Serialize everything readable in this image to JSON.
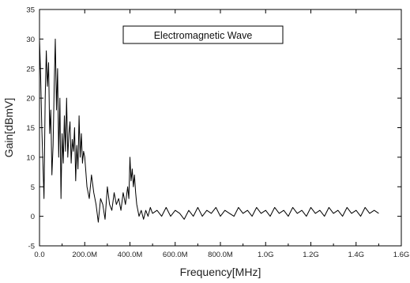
{
  "chart_data": {
    "type": "line",
    "title": "",
    "xlabel": "Frequency[MHz]",
    "ylabel": "Gain[dBmV]",
    "xlim": [
      0,
      1600
    ],
    "ylim": [
      -5,
      35
    ],
    "x_ticks": [
      {
        "value": 0,
        "label": "0.0"
      },
      {
        "value": 200,
        "label": "200.0M"
      },
      {
        "value": 400,
        "label": "400.0M"
      },
      {
        "value": 600,
        "label": "600.0M"
      },
      {
        "value": 800,
        "label": "800.0M"
      },
      {
        "value": 1000,
        "label": "1.0G"
      },
      {
        "value": 1200,
        "label": "1.2G"
      },
      {
        "value": 1400,
        "label": "1.4G"
      },
      {
        "value": 1600,
        "label": "1.6G"
      }
    ],
    "y_ticks": [
      {
        "value": -5,
        "label": "-5"
      },
      {
        "value": 0,
        "label": "0"
      },
      {
        "value": 5,
        "label": "5"
      },
      {
        "value": 10,
        "label": "10"
      },
      {
        "value": 15,
        "label": "15"
      },
      {
        "value": 20,
        "label": "20"
      },
      {
        "value": 25,
        "label": "25"
      },
      {
        "value": 30,
        "label": "30"
      },
      {
        "value": 35,
        "label": "35"
      }
    ],
    "grid": false,
    "legend_position": "top-center",
    "series": [
      {
        "name": "Electromagnetic Wave",
        "color": "#000000",
        "x": [
          0,
          5,
          10,
          15,
          20,
          25,
          30,
          35,
          40,
          45,
          50,
          55,
          60,
          65,
          70,
          75,
          80,
          85,
          90,
          95,
          100,
          105,
          110,
          115,
          120,
          125,
          130,
          135,
          140,
          145,
          150,
          155,
          160,
          165,
          170,
          175,
          180,
          185,
          190,
          195,
          200,
          210,
          220,
          230,
          240,
          250,
          260,
          270,
          280,
          290,
          300,
          310,
          320,
          330,
          340,
          350,
          360,
          370,
          380,
          390,
          395,
          400,
          405,
          410,
          415,
          420,
          425,
          430,
          440,
          450,
          460,
          470,
          480,
          490,
          500,
          520,
          540,
          560,
          580,
          600,
          620,
          640,
          660,
          680,
          700,
          720,
          740,
          760,
          780,
          800,
          820,
          840,
          860,
          880,
          900,
          920,
          940,
          960,
          980,
          1000,
          1020,
          1040,
          1060,
          1080,
          1100,
          1120,
          1140,
          1160,
          1180,
          1200,
          1220,
          1240,
          1260,
          1280,
          1300,
          1320,
          1340,
          1360,
          1380,
          1400,
          1420,
          1440,
          1460,
          1480,
          1500
        ],
        "y": [
          30,
          24,
          15,
          9,
          3,
          20,
          28,
          22,
          26,
          14,
          18,
          7,
          12,
          22,
          30,
          18,
          25,
          10,
          20,
          3,
          14,
          9,
          17,
          11,
          20,
          10,
          14,
          16,
          9,
          13,
          11,
          15,
          6,
          12,
          8,
          17,
          10,
          14,
          9,
          11,
          10,
          5,
          3,
          7,
          4,
          2,
          -1,
          3,
          2,
          -0.5,
          5,
          2,
          1,
          4,
          2,
          3,
          1,
          4,
          2,
          5,
          3,
          10,
          6,
          8,
          5,
          7,
          4,
          2,
          0,
          1,
          -0.5,
          1,
          0,
          1.5,
          0.5,
          1,
          0,
          1.5,
          0,
          1,
          0.5,
          -0.5,
          1,
          0,
          1.5,
          0,
          1,
          0.5,
          1.5,
          0,
          1,
          0.5,
          0,
          1.5,
          0.5,
          1,
          0,
          1.5,
          0.5,
          1,
          0,
          1.5,
          0.5,
          1,
          0,
          1.5,
          0.5,
          1,
          0,
          1.5,
          0.5,
          1,
          0,
          1.5,
          0.5,
          1,
          0,
          1.5,
          0.5,
          1,
          0,
          1.5,
          0.5,
          1,
          0.5
        ]
      }
    ]
  }
}
